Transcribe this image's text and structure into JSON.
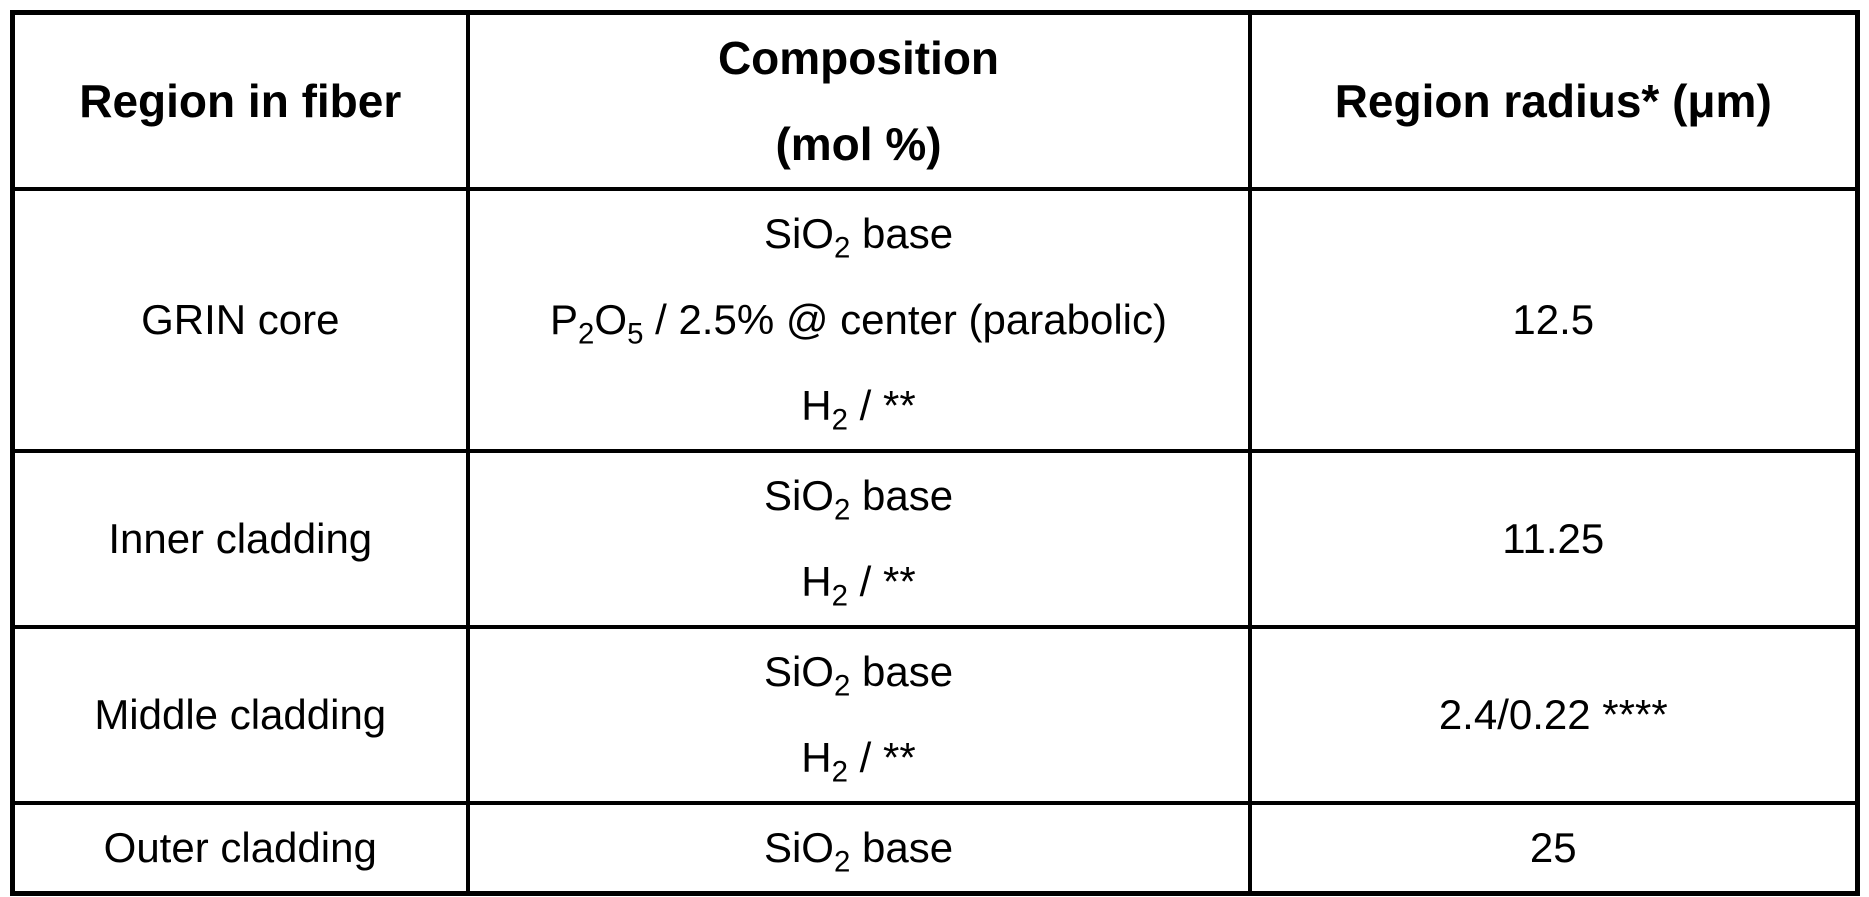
{
  "table": {
    "headers": {
      "region": "Region in fiber",
      "composition_line1": "Composition",
      "composition_line2": "(mol %)",
      "radius": "Region radius* (μm)"
    },
    "rows": [
      {
        "region": "GRIN core",
        "composition": [
          [
            {
              "t": "SiO"
            },
            {
              "t": "2",
              "sub": true
            },
            {
              "t": " base"
            }
          ],
          [
            {
              "t": "P"
            },
            {
              "t": "2",
              "sub": true
            },
            {
              "t": "O"
            },
            {
              "t": "5",
              "sub": true
            },
            {
              "t": " / 2.5% @ center (parabolic)"
            }
          ],
          [
            {
              "t": "H"
            },
            {
              "t": "2",
              "sub": true
            },
            {
              "t": " / **"
            }
          ]
        ],
        "radius": "12.5"
      },
      {
        "region": "Inner cladding",
        "composition": [
          [
            {
              "t": "SiO"
            },
            {
              "t": "2",
              "sub": true
            },
            {
              "t": " base"
            }
          ],
          [
            {
              "t": "H"
            },
            {
              "t": "2",
              "sub": true
            },
            {
              "t": " / **"
            }
          ]
        ],
        "radius": "11.25"
      },
      {
        "region": "Middle cladding",
        "composition": [
          [
            {
              "t": "SiO"
            },
            {
              "t": "2",
              "sub": true
            },
            {
              "t": " base"
            }
          ],
          [
            {
              "t": "H"
            },
            {
              "t": "2",
              "sub": true
            },
            {
              "t": " / **"
            }
          ]
        ],
        "radius": "2.4/0.22 ****"
      },
      {
        "region": "Outer cladding",
        "composition": [
          [
            {
              "t": "SiO"
            },
            {
              "t": "2",
              "sub": true
            },
            {
              "t": " base"
            }
          ]
        ],
        "radius": "25"
      }
    ]
  }
}
